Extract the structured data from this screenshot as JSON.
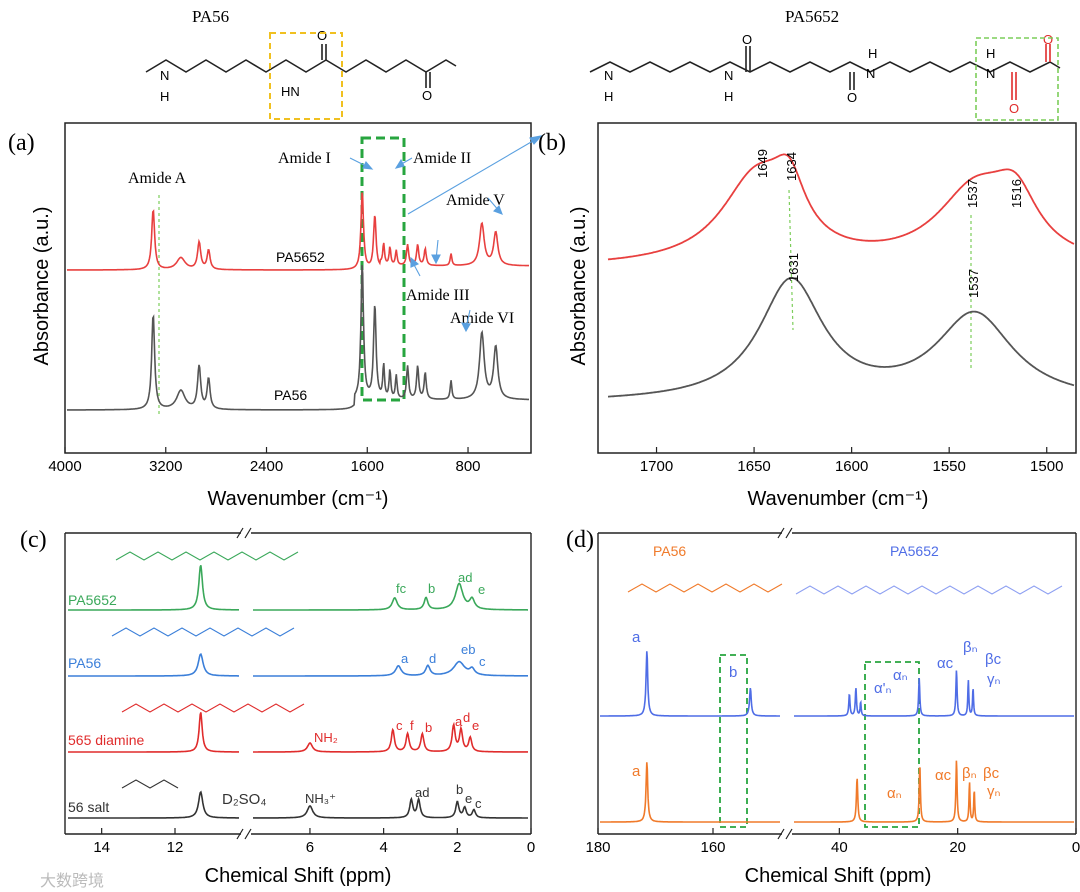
{
  "structures": {
    "left_title": "PA56",
    "right_title": "PA5652",
    "labels": {
      "H": "H",
      "N": "N",
      "HN": "HN",
      "O": "O"
    }
  },
  "chart_data": [
    {
      "id": "a",
      "type": "line",
      "panel_label": "(a)",
      "xlabel": "Wavenumber (cm⁻¹)",
      "ylabel": "Absorbance (a.u.)",
      "xlim": [
        4000,
        300
      ],
      "x_ticks": [
        4000,
        3200,
        2400,
        1600,
        800
      ],
      "series": [
        {
          "name": "PA5652",
          "color": "#e8403f"
        },
        {
          "name": "PA56",
          "color": "#555555"
        }
      ],
      "annotations": [
        "Amide A",
        "Amide I",
        "Amide II",
        "Amide V",
        "Amide III",
        "Amide VI"
      ]
    },
    {
      "id": "b",
      "type": "line",
      "panel_label": "(b)",
      "xlabel": "Wavenumber (cm⁻¹)",
      "ylabel": "Absorbance (a.u.)",
      "xlim": [
        1730,
        1485
      ],
      "x_ticks": [
        1700,
        1650,
        1600,
        1550,
        1500
      ],
      "series": [
        {
          "name": "PA5652",
          "color": "#e8403f",
          "peaks": [
            1649,
            1634,
            1537,
            1516
          ]
        },
        {
          "name": "PA56",
          "color": "#555555",
          "peaks": [
            1631,
            1537
          ]
        }
      ]
    },
    {
      "id": "c",
      "type": "line",
      "panel_label": "(c)",
      "xlabel": "Chemical Shift (ppm)",
      "x_ticks": [
        14,
        12,
        6,
        4,
        2,
        0
      ],
      "series": [
        {
          "name": "PA5652",
          "color": "#3aa85a",
          "peaks": [
            "fc",
            "b",
            "ad",
            "e"
          ]
        },
        {
          "name": "PA56",
          "color": "#3b7fd9",
          "peaks": [
            "a",
            "d",
            "eb",
            "c"
          ]
        },
        {
          "name": "565 diamine",
          "color": "#e02c2c",
          "peaks": [
            "c",
            "f",
            "b",
            "a",
            "d",
            "e"
          ],
          "extra": "NH₂"
        },
        {
          "name": "56 salt",
          "color": "#333333",
          "peaks": [
            "ad",
            "b",
            "e",
            "c"
          ],
          "extra": "NH₃⁺",
          "solvent": "D₂SO₄"
        }
      ]
    },
    {
      "id": "d",
      "type": "line",
      "panel_label": "(d)",
      "xlabel": "Chemical Shift (ppm)",
      "x_ticks": [
        180,
        160,
        40,
        20,
        0
      ],
      "series": [
        {
          "name": "PA5652",
          "color": "#4f6de6",
          "peaks": [
            "a",
            "b",
            "α'ₙ",
            "αₙ",
            "αc",
            "βₙ",
            "βc",
            "γₙ"
          ]
        },
        {
          "name": "PA56",
          "color": "#f07a2a",
          "peaks": [
            "a",
            "αₙ",
            "αc",
            "βₙ",
            "βc",
            "γₙ"
          ]
        }
      ]
    }
  ],
  "watermark": "大数跨境"
}
